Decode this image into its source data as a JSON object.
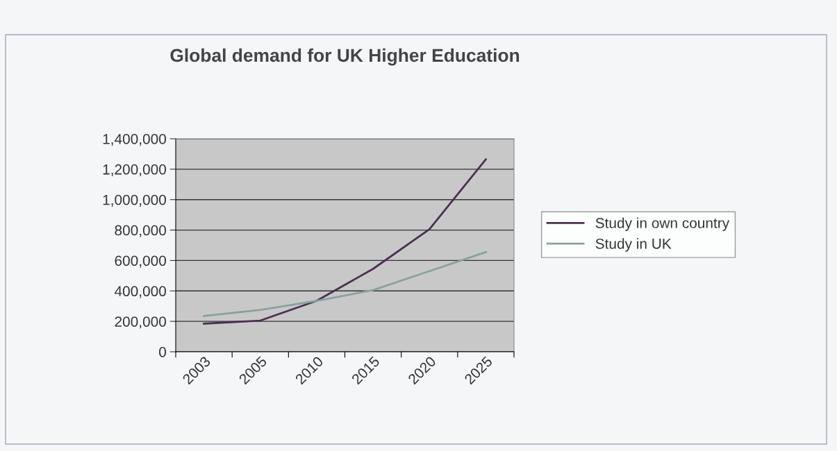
{
  "chart_data": {
    "type": "line",
    "title": "Global demand for UK Higher Education",
    "categories": [
      "2003",
      "2005",
      "2010",
      "2015",
      "2020",
      "2025"
    ],
    "series": [
      {
        "name": "Study in own country",
        "color": "#4a3050",
        "values": [
          185000,
          205000,
          335000,
          545000,
          805000,
          1265000
        ]
      },
      {
        "name": "Study in UK",
        "color": "#8aa0a0",
        "values": [
          235000,
          275000,
          335000,
          405000,
          530000,
          655000
        ]
      }
    ],
    "ylim": [
      0,
      1400000
    ],
    "yticks": [
      {
        "value": 0,
        "label": "0"
      },
      {
        "value": 200000,
        "label": "200,000"
      },
      {
        "value": 400000,
        "label": "400,000"
      },
      {
        "value": 600000,
        "label": "600,000"
      },
      {
        "value": 800000,
        "label": "800,000"
      },
      {
        "value": 1000000,
        "label": "1,000,000"
      },
      {
        "value": 1200000,
        "label": "1,200,000"
      },
      {
        "value": 1400000,
        "label": "1,400,000"
      }
    ],
    "grid": "y",
    "legend": "right",
    "marker": "none",
    "line_style": "solid"
  }
}
